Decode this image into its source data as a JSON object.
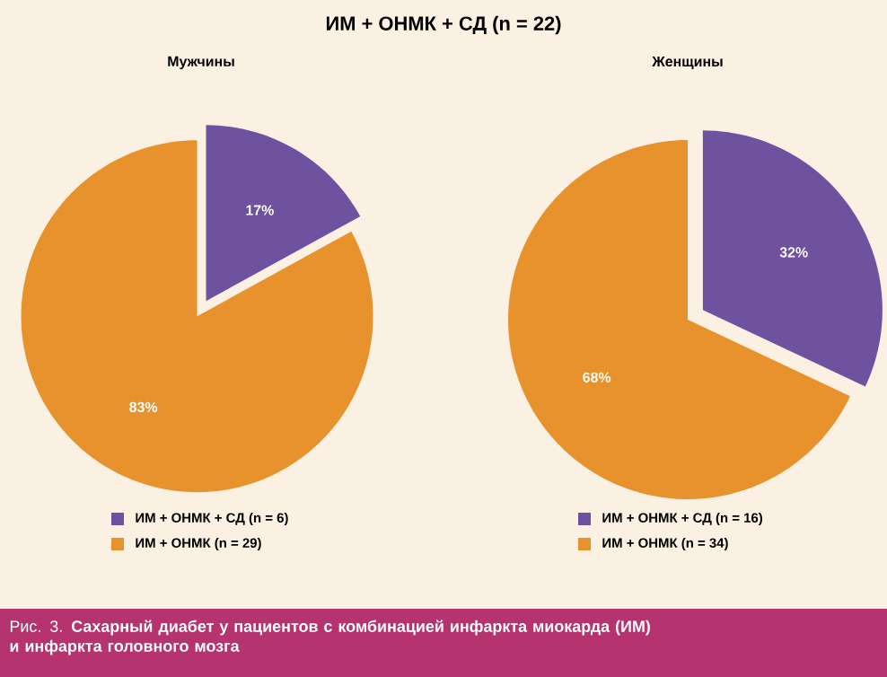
{
  "chart_data": [
    {
      "type": "pie",
      "title": "ИМ + ОНМК + СД (n = 22)",
      "subtitle": "Мужчины",
      "categories": [
        "ИМ + ОНМК + СД (n = 6)",
        "ИМ + ОНМК (n = 29)"
      ],
      "values": [
        17,
        83
      ],
      "value_labels": [
        "17%",
        "83%"
      ],
      "colors": [
        "#6e52a0",
        "#e8922e"
      ],
      "legend": "bottom",
      "annotations": [
        "Рис. 3. **Сахарный диабет у пациентов с комбинацией инфаркта миокарда (ИМ) и инфаркта головного мозга**"
      ]
    },
    {
      "type": "pie",
      "subtitle": "Женщины",
      "categories": [
        "ИМ + ОНМК + СД (n = 16)",
        "ИМ + ОНМК (n = 34)"
      ],
      "values": [
        32,
        68
      ],
      "value_labels": [
        "32%",
        "68%"
      ],
      "colors": [
        "#6e52a0",
        "#e8922e"
      ],
      "legend": "bottom"
    }
  ]
}
